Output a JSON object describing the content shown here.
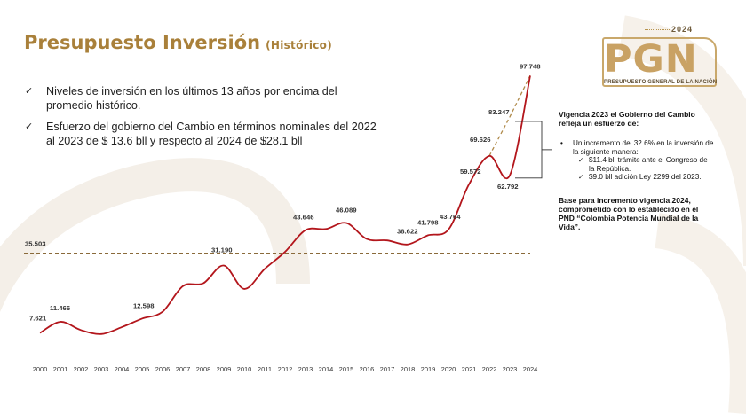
{
  "header": {
    "title": "Presupuesto Inversión",
    "subtitle": "(Histórico)"
  },
  "bullets": [
    "Niveles de inversión en los últimos 13 años por encima del promedio histórico.",
    "Esfuerzo del gobierno del Cambio en términos nominales del 2022 al 2023 de $ 13.6 bll y respecto al 2024 de $28.1 bll"
  ],
  "logo": {
    "year": "2024",
    "letters": "PGN",
    "tagline": "PRESUPUESTO GENERAL DE LA NACIÓN"
  },
  "side_note": {
    "heading": "Vigencia 2023 el Gobierno del Cambio refleja un esfuerzo de:",
    "bullet": "Un incremento del 32.6% en la inversión de la siguiente manera:",
    "sub_items": [
      "$11.4 bll trámite ante el Congreso de la República.",
      "$9.0 bll adición Ley 2299 del 2023."
    ],
    "heading2": "Base para incremento vigencia 2024, comprometido con lo establecido en el PND “Colombia Potencia Mundial de la Vida”."
  },
  "colors": {
    "accent": "#a9803a",
    "line": "#b3161c",
    "reference": "#8a6a3a"
  },
  "chart_data": {
    "type": "line",
    "x": [
      "2000",
      "2001",
      "2002",
      "2003",
      "2004",
      "2005",
      "2006",
      "2007",
      "2008",
      "2009",
      "2010",
      "2011",
      "2012",
      "2013",
      "2014",
      "2015",
      "2016",
      "2017",
      "2018",
      "2019",
      "2020",
      "2021",
      "2022",
      "2023",
      "2024"
    ],
    "values": [
      7.6,
      11.5,
      8.6,
      7.2,
      9.6,
      12.6,
      15.0,
      24.0,
      25.0,
      31.2,
      23.0,
      30.0,
      36.0,
      43.6,
      44.0,
      46.1,
      40.5,
      40.0,
      38.6,
      41.8,
      43.8,
      59.6,
      69.6,
      62.8,
      97.7
    ],
    "labels": [
      {
        "year": "2000",
        "value": 7.621,
        "text": "7.621"
      },
      {
        "year": "2001",
        "value": 11.466,
        "text": "11.466"
      },
      {
        "year": "2005",
        "value": 12.598,
        "text": "12.598"
      },
      {
        "year": "2009",
        "value": 31.19,
        "text": "31.190"
      },
      {
        "year": "2013",
        "value": 43.646,
        "text": "43.646"
      },
      {
        "year": "2015",
        "value": 46.089,
        "text": "46.089"
      },
      {
        "year": "2018",
        "value": 38.622,
        "text": "38.622"
      },
      {
        "year": "2019",
        "value": 41.798,
        "text": "41.798"
      },
      {
        "year": "2020",
        "value": 43.764,
        "text": "43.764"
      },
      {
        "year": "2021",
        "value": 59.572,
        "text": "59.572"
      },
      {
        "year": "2022",
        "value": 69.626,
        "text": "69.626"
      },
      {
        "year": "2023",
        "value": 62.792,
        "text": "62.792"
      },
      {
        "year": "2023",
        "value": 83.247,
        "text": "83.247"
      },
      {
        "year": "2024",
        "value": 97.748,
        "text": "97.748"
      }
    ],
    "reference_line": {
      "value": 35.503,
      "label": "35.503"
    },
    "projection": [
      {
        "year": "2022",
        "value": 69.626
      },
      {
        "year": "2023",
        "value": 83.247
      },
      {
        "year": "2024",
        "value": 97.748
      }
    ],
    "ylim": [
      0,
      100
    ],
    "grid": false,
    "legend": "none"
  }
}
